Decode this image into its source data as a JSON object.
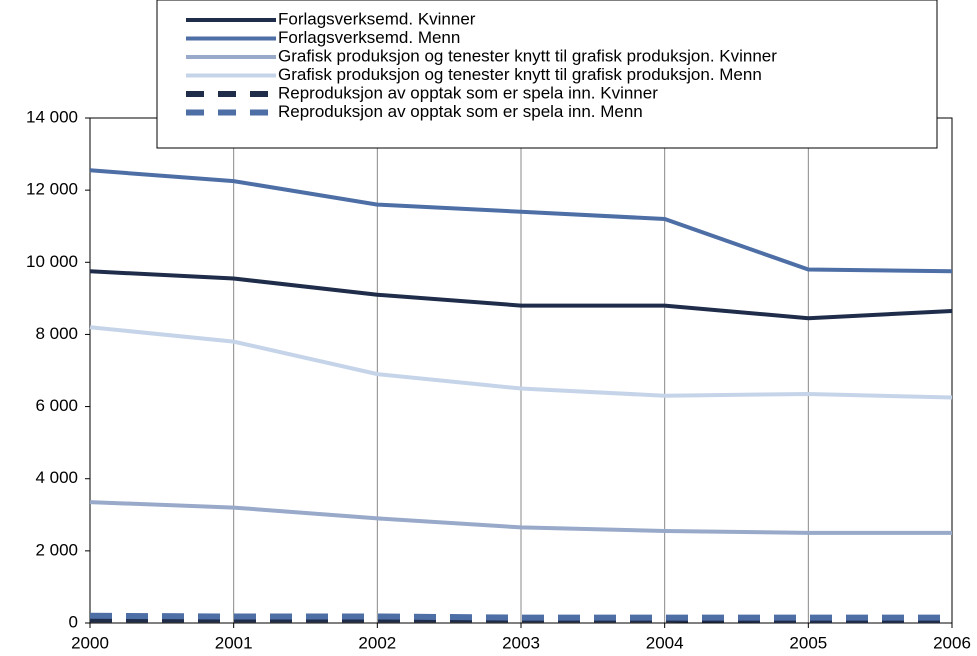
{
  "chart_data": {
    "type": "line",
    "x": [
      2000,
      2001,
      2002,
      2003,
      2004,
      2005,
      2006
    ],
    "xlim": [
      2000,
      2006
    ],
    "xticks": [
      2000,
      2001,
      2002,
      2003,
      2004,
      2005,
      2006
    ],
    "ylim": [
      0,
      14000
    ],
    "yticks": [
      0,
      {
        "value": 2000,
        "label": "2 000"
      },
      {
        "value": 4000,
        "label": "4 000"
      },
      {
        "value": 6000,
        "label": "6 000"
      },
      {
        "value": 8000,
        "label": "8 000"
      },
      {
        "value": 10000,
        "label": "10 000"
      },
      {
        "value": 12000,
        "label": "12 000"
      },
      {
        "value": 14000,
        "label": "14 000"
      }
    ],
    "grid": "x",
    "legend": "top",
    "series": [
      {
        "name": "Forlagsverksemd. Kvinner",
        "color": "#1f2d4a",
        "style": "solid",
        "values": [
          9750,
          9550,
          9100,
          8800,
          8800,
          8450,
          8650
        ]
      },
      {
        "name": "Forlagsverksemd. Menn",
        "color": "#4e6ea6",
        "style": "solid",
        "values": [
          12550,
          12250,
          11600,
          11400,
          11200,
          9800,
          9750
        ]
      },
      {
        "name": "Grafisk produksjon og tenester knytt til grafisk produksjon. Kvinner",
        "color": "#98a9c9",
        "style": "solid",
        "values": [
          3350,
          3200,
          2900,
          2650,
          2550,
          2500,
          2500
        ]
      },
      {
        "name": "Grafisk produksjon og tenester knytt til grafisk produksjon. Menn",
        "color": "#c6d4e9",
        "style": "solid",
        "values": [
          8200,
          7800,
          6900,
          6500,
          6300,
          6350,
          6250
        ]
      },
      {
        "name": "Reproduksjon av opptak som er spela inn. Kvinner",
        "color": "#1f2d4a",
        "style": "dashed",
        "values": [
          100,
          100,
          100,
          100,
          100,
          80,
          80
        ]
      },
      {
        "name": "Reproduksjon av opptak som er spela inn. Menn",
        "color": "#4e6ea6",
        "style": "dashed",
        "values": [
          200,
          180,
          180,
          150,
          150,
          150,
          150
        ]
      }
    ]
  }
}
